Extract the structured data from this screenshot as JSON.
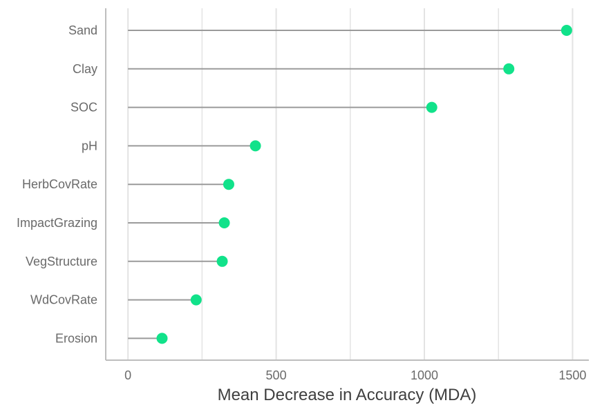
{
  "chart_data": {
    "type": "lollipop",
    "title": "",
    "xlabel": "Mean Decrease in Accuracy (MDA)",
    "ylabel": "",
    "xlim": [
      -75,
      1555
    ],
    "x_ticks": [
      0,
      500,
      1000,
      1500
    ],
    "x_tick_labels": [
      "0",
      "500",
      "1000",
      "1500"
    ],
    "grid": true,
    "categories": [
      "Sand",
      "Clay",
      "SOC",
      "pH",
      "HerbCovRate",
      "ImpactGrazing",
      "VegStructure",
      "WdCovRate",
      "Erosion"
    ],
    "values": [
      1480,
      1285,
      1025,
      430,
      340,
      325,
      318,
      230,
      115
    ],
    "colors": {
      "point": "#11e28a",
      "stem": "#9a9a9a",
      "grid": "#e3e3e3",
      "axis": "#bdbdbd"
    }
  }
}
